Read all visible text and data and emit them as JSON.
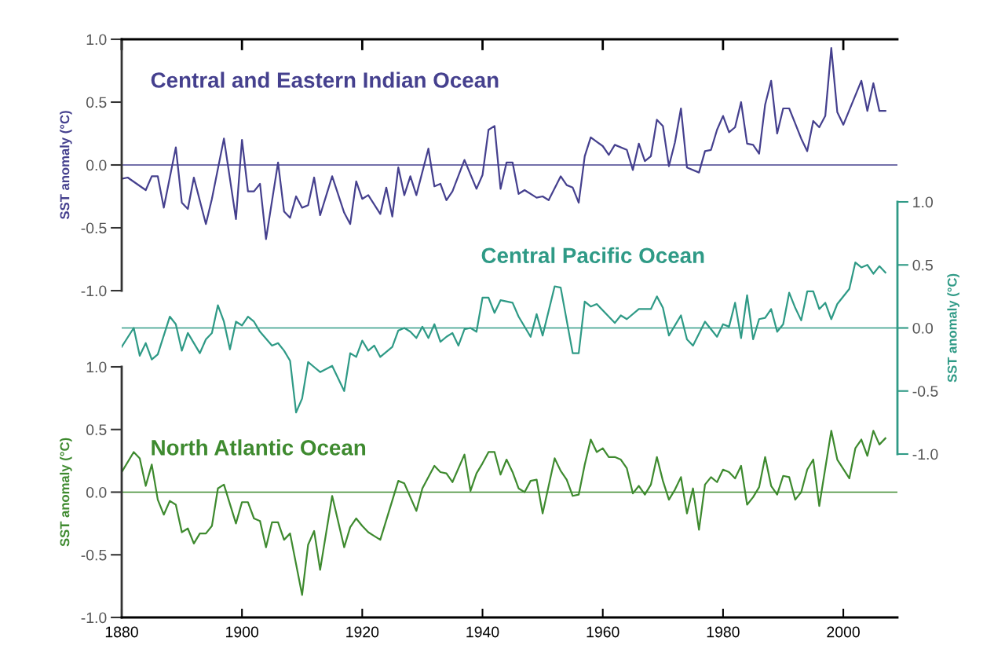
{
  "chart_data": [
    {
      "type": "line",
      "ylabel": "SST anomaly (°C)",
      "xlim": [
        1880,
        2009
      ],
      "xticks": [
        1880,
        1900,
        1920,
        1940,
        1960,
        1980,
        2000
      ],
      "ylim": [
        -1,
        1
      ],
      "yticks": [
        {
          "value": -1,
          "label": "-1.0"
        },
        {
          "value": -0.5,
          "label": "-0.5"
        },
        {
          "value": 0,
          "label": "0.0"
        },
        {
          "value": 0.5,
          "label": "0.5"
        },
        {
          "value": 1,
          "label": "1.0"
        }
      ],
      "tick_labels": "y",
      "grid": false,
      "legend": false,
      "ref_lines": [
        {
          "axis": "y",
          "value": 0,
          "color": "#45408e"
        }
      ],
      "series": [
        {
          "name": "Central and Eastern Indian Ocean",
          "color": "#45408e",
          "x": [
            1880,
            1881,
            1884,
            1885,
            1886,
            1887,
            1889,
            1890,
            1891,
            1892,
            1894,
            1895,
            1897,
            1899,
            1900,
            1901,
            1902,
            1903,
            1904,
            1906,
            1907,
            1908,
            1909,
            1910,
            1911,
            1912,
            1913,
            1915,
            1917,
            1918,
            1919,
            1920,
            1921,
            1923,
            1924,
            1925,
            1926,
            1927,
            1928,
            1929,
            1931,
            1932,
            1933,
            1934,
            1935,
            1937,
            1939,
            1940,
            1941,
            1942,
            1943,
            1944,
            1945,
            1946,
            1947,
            1949,
            1950,
            1951,
            1953,
            1954,
            1955,
            1956,
            1957,
            1958,
            1960,
            1961,
            1962,
            1964,
            1965,
            1966,
            1967,
            1968,
            1969,
            1970,
            1971,
            1972,
            1973,
            1974,
            1976,
            1977,
            1978,
            1979,
            1980,
            1981,
            1982,
            1983,
            1984,
            1985,
            1986,
            1987,
            1988,
            1989,
            1990,
            1991,
            1992,
            1993,
            1994,
            1995,
            1996,
            1997,
            1998,
            1999,
            2000,
            2003,
            2004,
            2005,
            2006,
            2007
          ],
          "values": [
            -0.11,
            -0.1,
            -0.2,
            -0.09,
            -0.09,
            -0.34,
            0.14,
            -0.3,
            -0.35,
            -0.1,
            -0.47,
            -0.27,
            0.21,
            -0.43,
            0.2,
            -0.21,
            -0.21,
            -0.15,
            -0.59,
            0.02,
            -0.37,
            -0.42,
            -0.25,
            -0.34,
            -0.32,
            -0.1,
            -0.4,
            -0.09,
            -0.38,
            -0.47,
            -0.13,
            -0.27,
            -0.24,
            -0.39,
            -0.18,
            -0.41,
            -0.02,
            -0.24,
            -0.09,
            -0.24,
            0.13,
            -0.17,
            -0.15,
            -0.28,
            -0.21,
            0.04,
            -0.19,
            -0.08,
            0.28,
            0.31,
            -0.19,
            0.02,
            0.02,
            -0.23,
            -0.2,
            -0.26,
            -0.25,
            -0.28,
            -0.09,
            -0.16,
            -0.18,
            -0.3,
            0.07,
            0.22,
            0.15,
            0.08,
            0.16,
            0.12,
            -0.04,
            0.17,
            0.03,
            0.07,
            0.36,
            0.31,
            -0.01,
            0.18,
            0.45,
            -0.02,
            -0.06,
            0.11,
            0.12,
            0.28,
            0.39,
            0.26,
            0.3,
            0.5,
            0.17,
            0.16,
            0.09,
            0.48,
            0.67,
            0.25,
            0.45,
            0.45,
            0.33,
            0.21,
            0.11,
            0.35,
            0.3,
            0.39,
            0.93,
            0.42,
            0.32,
            0.67,
            0.43,
            0.65,
            0.43,
            0.43
          ]
        }
      ]
    },
    {
      "type": "line",
      "y2label": "SST anomaly (°C)",
      "xlim": [
        1880,
        2009
      ],
      "y2lim": [
        -1,
        1
      ],
      "y2ticks": [
        {
          "value": -1,
          "label": "-1.0"
        },
        {
          "value": -0.5,
          "label": "-0.5"
        },
        {
          "value": 0,
          "label": "0.0"
        },
        {
          "value": 0.5,
          "label": "0.5"
        },
        {
          "value": 1,
          "label": "1.0"
        }
      ],
      "tick_labels": "y",
      "grid": false,
      "legend": false,
      "ref_lines": [
        {
          "axis": "y2",
          "value": 0,
          "color": "#2f9a86"
        }
      ],
      "series": [
        {
          "name": "Central Pacific Ocean",
          "color": "#2f9a86",
          "axis": "y2",
          "x": [
            1880,
            1882,
            1883,
            1884,
            1885,
            1886,
            1888,
            1889,
            1890,
            1891,
            1893,
            1894,
            1895,
            1896,
            1897,
            1898,
            1899,
            1900,
            1901,
            1902,
            1903,
            1905,
            1906,
            1907,
            1908,
            1909,
            1910,
            1911,
            1912,
            1913,
            1915,
            1917,
            1918,
            1919,
            1920,
            1921,
            1922,
            1923,
            1925,
            1926,
            1927,
            1928,
            1929,
            1930,
            1931,
            1932,
            1933,
            1934,
            1935,
            1936,
            1937,
            1938,
            1939,
            1940,
            1941,
            1942,
            1943,
            1945,
            1946,
            1948,
            1949,
            1950,
            1952,
            1953,
            1955,
            1956,
            1957,
            1958,
            1959,
            1962,
            1963,
            1964,
            1966,
            1968,
            1969,
            1970,
            1971,
            1973,
            1974,
            1975,
            1977,
            1979,
            1980,
            1981,
            1982,
            1983,
            1984,
            1985,
            1986,
            1987,
            1988,
            1989,
            1990,
            1991,
            1992,
            1993,
            1994,
            1995,
            1996,
            1997,
            1998,
            1999,
            2001,
            2002,
            2003,
            2004,
            2005,
            2006,
            2007
          ],
          "values": [
            -0.15,
            0.0,
            -0.22,
            -0.12,
            -0.25,
            -0.21,
            0.09,
            0.03,
            -0.18,
            -0.04,
            -0.2,
            -0.09,
            -0.04,
            0.18,
            0.05,
            -0.17,
            0.05,
            0.02,
            0.09,
            0.05,
            -0.03,
            -0.14,
            -0.12,
            -0.18,
            -0.26,
            -0.67,
            -0.56,
            -0.27,
            -0.31,
            -0.35,
            -0.3,
            -0.5,
            -0.2,
            -0.23,
            -0.1,
            -0.18,
            -0.14,
            -0.23,
            -0.15,
            -0.02,
            0.0,
            -0.03,
            -0.08,
            0.01,
            -0.08,
            0.03,
            -0.11,
            -0.07,
            -0.04,
            -0.14,
            -0.01,
            0.0,
            -0.03,
            0.24,
            0.24,
            0.12,
            0.22,
            0.2,
            0.09,
            -0.07,
            0.11,
            -0.06,
            0.33,
            0.32,
            -0.2,
            -0.2,
            0.21,
            0.17,
            0.19,
            0.04,
            0.1,
            0.07,
            0.15,
            0.15,
            0.25,
            0.16,
            -0.06,
            0.1,
            -0.09,
            -0.14,
            0.05,
            -0.07,
            0.03,
            0.01,
            0.2,
            -0.08,
            0.26,
            -0.09,
            0.07,
            0.08,
            0.15,
            -0.03,
            0.03,
            0.28,
            0.16,
            0.06,
            0.29,
            0.29,
            0.15,
            0.2,
            0.07,
            0.19,
            0.31,
            0.52,
            0.48,
            0.5,
            0.43,
            0.49,
            0.44
          ]
        }
      ]
    },
    {
      "type": "line",
      "ylabel": "SST anomaly (°C)",
      "xlim": [
        1880,
        2009
      ],
      "xticks": [
        1880,
        1900,
        1920,
        1940,
        1960,
        1980,
        2000
      ],
      "ylim": [
        -1,
        1
      ],
      "yticks": [
        {
          "value": -1,
          "label": "-1.0"
        },
        {
          "value": -0.5,
          "label": "-0.5"
        },
        {
          "value": 0,
          "label": "0.0"
        },
        {
          "value": 0.5,
          "label": "0.5"
        },
        {
          "value": 1,
          "label": "1.0"
        }
      ],
      "grid": false,
      "legend": false,
      "ref_lines": [
        {
          "axis": "y",
          "value": 0,
          "color": "#3e8a2f"
        }
      ],
      "series": [
        {
          "name": "North Atlantic Ocean",
          "color": "#3e8a2f",
          "x": [
            1880,
            1882,
            1883,
            1884,
            1885,
            1886,
            1887,
            1888,
            1889,
            1890,
            1891,
            1892,
            1893,
            1894,
            1895,
            1896,
            1897,
            1899,
            1900,
            1901,
            1902,
            1903,
            1904,
            1905,
            1906,
            1907,
            1908,
            1910,
            1911,
            1912,
            1913,
            1915,
            1917,
            1918,
            1919,
            1920,
            1921,
            1922,
            1923,
            1926,
            1927,
            1929,
            1930,
            1932,
            1933,
            1934,
            1935,
            1937,
            1938,
            1939,
            1940,
            1941,
            1942,
            1943,
            1944,
            1945,
            1946,
            1947,
            1948,
            1949,
            1950,
            1952,
            1953,
            1954,
            1955,
            1956,
            1957,
            1958,
            1959,
            1960,
            1961,
            1962,
            1963,
            1964,
            1965,
            1966,
            1967,
            1968,
            1969,
            1970,
            1971,
            1972,
            1973,
            1974,
            1975,
            1976,
            1977,
            1978,
            1979,
            1980,
            1981,
            1982,
            1983,
            1984,
            1985,
            1986,
            1987,
            1988,
            1989,
            1990,
            1991,
            1992,
            1993,
            1994,
            1995,
            1996,
            1998,
            1999,
            2001,
            2002,
            2003,
            2004,
            2005,
            2006,
            2007
          ],
          "values": [
            0.16,
            0.32,
            0.27,
            0.05,
            0.22,
            -0.06,
            -0.18,
            -0.07,
            -0.1,
            -0.32,
            -0.29,
            -0.41,
            -0.33,
            -0.33,
            -0.27,
            0.03,
            0.06,
            -0.25,
            -0.08,
            -0.08,
            -0.21,
            -0.23,
            -0.44,
            -0.24,
            -0.24,
            -0.38,
            -0.33,
            -0.82,
            -0.42,
            -0.31,
            -0.62,
            -0.03,
            -0.44,
            -0.28,
            -0.21,
            -0.27,
            -0.32,
            -0.35,
            -0.38,
            0.09,
            0.07,
            -0.15,
            0.03,
            0.21,
            0.16,
            0.15,
            0.08,
            0.3,
            0.01,
            0.15,
            0.23,
            0.32,
            0.32,
            0.14,
            0.26,
            0.16,
            0.03,
            0.0,
            0.09,
            0.1,
            -0.17,
            0.27,
            0.17,
            0.1,
            -0.03,
            -0.02,
            0.22,
            0.42,
            0.32,
            0.35,
            0.28,
            0.28,
            0.26,
            0.19,
            -0.01,
            0.05,
            -0.02,
            0.06,
            0.28,
            0.09,
            -0.06,
            0.02,
            0.12,
            -0.17,
            0.03,
            -0.3,
            0.06,
            0.12,
            0.08,
            0.18,
            0.16,
            0.11,
            0.21,
            -0.1,
            -0.04,
            0.04,
            0.28,
            0.05,
            -0.02,
            0.13,
            0.12,
            -0.06,
            0.0,
            0.18,
            0.26,
            -0.11,
            0.49,
            0.26,
            0.11,
            0.35,
            0.42,
            0.29,
            0.49,
            0.38,
            0.43
          ]
        }
      ]
    }
  ]
}
